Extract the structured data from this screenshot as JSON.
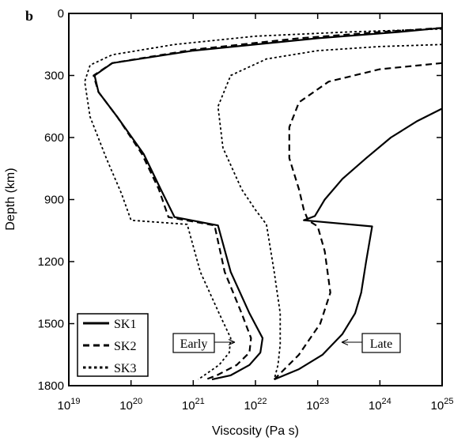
{
  "chart_data": {
    "type": "line",
    "panel_label": "b",
    "title": "",
    "xlabel": "Viscosity (Pa s)",
    "ylabel": "Depth (km)",
    "x_scale": "log",
    "xlim": [
      1e+19,
      1e+25
    ],
    "ylim": [
      0,
      1800
    ],
    "y_inverted": true,
    "grid": false,
    "x_ticks": [
      {
        "value": 1e+19,
        "base": "10",
        "exp": "19"
      },
      {
        "value": 1e+20,
        "base": "10",
        "exp": "20"
      },
      {
        "value": 1e+21,
        "base": "10",
        "exp": "21"
      },
      {
        "value": 1e+22,
        "base": "10",
        "exp": "22"
      },
      {
        "value": 1e+23,
        "base": "10",
        "exp": "23"
      },
      {
        "value": 1e+24,
        "base": "10",
        "exp": "24"
      },
      {
        "value": 1e+25,
        "base": "10",
        "exp": "25"
      }
    ],
    "y_ticks": [
      "0",
      "300",
      "600",
      "900",
      "1200",
      "1500",
      "1800"
    ],
    "legend": {
      "placement": "bottom-left",
      "entries": [
        {
          "name": "SK1",
          "style": "solid"
        },
        {
          "name": "SK2",
          "style": "dashed"
        },
        {
          "name": "SK3",
          "style": "dotted"
        }
      ]
    },
    "annotations": [
      {
        "text": "Early",
        "points_to": "left-group"
      },
      {
        "text": "Late",
        "points_to": "right-group"
      }
    ],
    "series": [
      {
        "style": "solid",
        "group": "early",
        "x": [
          1e+25,
          2e+24,
          1e+23,
          1e+21,
          5e+19,
          2.6e+19,
          3e+19,
          6e+19,
          1.6e+20,
          3e+20,
          5e+20,
          2.5e+21,
          4e+21,
          8e+21,
          1.3e+22,
          1.2e+22,
          8e+21,
          4e+21,
          2e+21
        ],
        "y": [
          70,
          90,
          120,
          180,
          240,
          300,
          380,
          500,
          680,
          850,
          985,
          1025,
          1250,
          1450,
          1570,
          1640,
          1700,
          1750,
          1770
        ]
      },
      {
        "style": "dashed",
        "group": "early",
        "x": [
          1e+25,
          1e+24,
          5e+22,
          1e+21,
          5e+19,
          2.5e+19,
          3e+19,
          6e+19,
          1.5e+20,
          2.8e+20,
          4e+20,
          2.2e+21,
          3.2e+21,
          6e+21,
          8.5e+21,
          8e+21,
          5e+21,
          2.4e+21,
          1.6e+21
        ],
        "y": [
          70,
          90,
          120,
          175,
          240,
          300,
          380,
          500,
          680,
          850,
          985,
          1025,
          1250,
          1450,
          1570,
          1640,
          1700,
          1750,
          1770
        ]
      },
      {
        "style": "dotted",
        "group": "early",
        "x": [
          1e+25,
          3e+23,
          1e+22,
          5e+20,
          5e+19,
          2.2e+19,
          1.8e+19,
          2.2e+19,
          4e+19,
          7e+19,
          1e+20,
          8e+20,
          1.3e+21,
          2.6e+21,
          4e+21,
          3.8e+21,
          2.6e+21,
          1.5e+21,
          1.2e+21
        ],
        "y": [
          75,
          90,
          110,
          150,
          200,
          250,
          330,
          500,
          700,
          870,
          1000,
          1020,
          1250,
          1450,
          1570,
          1640,
          1700,
          1750,
          1770
        ]
      },
      {
        "style": "solid",
        "group": "late",
        "x": [
          1e+25,
          4e+24,
          1.5e+24,
          6e+23,
          2.5e+23,
          1.3e+23,
          9e+22,
          6e+22,
          7.5e+23,
          6e+23,
          5e+23,
          4e+23,
          2.5e+23,
          1.2e+23,
          5e+22,
          2e+22
        ],
        "y": [
          460,
          520,
          600,
          700,
          800,
          900,
          980,
          1000,
          1030,
          1200,
          1350,
          1450,
          1550,
          1650,
          1720,
          1770
        ]
      },
      {
        "style": "dashed",
        "group": "late",
        "x": [
          1e+25,
          1e+24,
          1.5e+23,
          5e+22,
          3.5e+22,
          3.5e+22,
          5e+22,
          6e+22,
          7e+22,
          1e+23,
          1.3e+23,
          1.6e+23,
          1.1e+23,
          5e+22,
          2e+22
        ],
        "y": [
          240,
          270,
          330,
          430,
          550,
          700,
          850,
          950,
          1000,
          1030,
          1150,
          1350,
          1500,
          1650,
          1770
        ]
      },
      {
        "style": "dotted",
        "group": "late",
        "x": [
          1e+25,
          1e+24,
          1e+23,
          1.5e+22,
          4e+21,
          2.5e+21,
          3e+21,
          6e+21,
          1e+22,
          1.5e+22,
          2e+22,
          2.5e+22,
          2.5e+22,
          2.3e+22,
          2e+22
        ],
        "y": [
          150,
          160,
          180,
          220,
          300,
          450,
          650,
          850,
          950,
          1020,
          1250,
          1450,
          1600,
          1700,
          1770
        ]
      }
    ]
  }
}
